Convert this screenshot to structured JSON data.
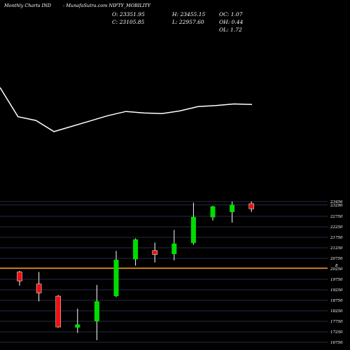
{
  "header": {
    "site": "Monthly Charts IND",
    "symbol": "- MunafaSutra.com NIFTY_MOBILITY",
    "open": "O: 23351.95",
    "high": "H: 23455.15",
    "oc": "OC: 1.07",
    "close": "C: 23105.85",
    "low": "L: 22957.60",
    "oh": "OH: 0.44",
    "ol": "OL: 1.72"
  },
  "colors": {
    "background": "#000000",
    "up": "#00dd00",
    "down": "#ee1111",
    "wick": "#ffffff",
    "ma_line": "#ffffff",
    "level_line": "#ff9900",
    "grid": "#2a2a44"
  },
  "chart_data": {
    "type": "candlestick",
    "y_ticks": [
      "23456",
      "23290",
      "22750",
      "22250",
      "21750",
      "21250",
      "20750",
      "20250",
      "19750",
      "19250",
      "18750",
      "18250",
      "17750",
      "17250",
      "16750"
    ],
    "y_tick_values": [
      23456,
      23290,
      22750,
      22250,
      21750,
      21250,
      20750,
      20250,
      19750,
      19250,
      18750,
      18250,
      17750,
      17250,
      16750
    ],
    "ylim": [
      16650,
      23650
    ],
    "level_line": 20280,
    "level_marker": "8",
    "candles": [
      {
        "open": 20100,
        "high": 20150,
        "low": 19450,
        "close": 19670
      },
      {
        "open": 19530,
        "high": 20100,
        "low": 18700,
        "close": 19100
      },
      {
        "open": 18950,
        "high": 19000,
        "low": 17450,
        "close": 17480
      },
      {
        "open": 17450,
        "high": 18350,
        "low": 17200,
        "close": 17600
      },
      {
        "open": 17750,
        "high": 19480,
        "low": 16850,
        "close": 18700
      },
      {
        "open": 18950,
        "high": 21100,
        "low": 18900,
        "close": 20680
      },
      {
        "open": 20700,
        "high": 21700,
        "low": 20400,
        "close": 21650
      },
      {
        "open": 21120,
        "high": 21500,
        "low": 20550,
        "close": 20930
      },
      {
        "open": 20950,
        "high": 22100,
        "low": 20650,
        "close": 21450
      },
      {
        "open": 21480,
        "high": 23400,
        "low": 21400,
        "close": 22720
      },
      {
        "open": 22700,
        "high": 23250,
        "low": 22550,
        "close": 23220
      },
      {
        "open": 22950,
        "high": 23450,
        "low": 22450,
        "close": 23300
      },
      {
        "open": 23351.95,
        "high": 23455.15,
        "low": 22957.6,
        "close": 23105.85
      }
    ],
    "ma_line": [
      16.0,
      21.5,
      22.2,
      24.3,
      23.3,
      22.3,
      21.3,
      20.5,
      20.8,
      20.9,
      20.4,
      19.6,
      19.4,
      19.1,
      19.2
    ]
  }
}
